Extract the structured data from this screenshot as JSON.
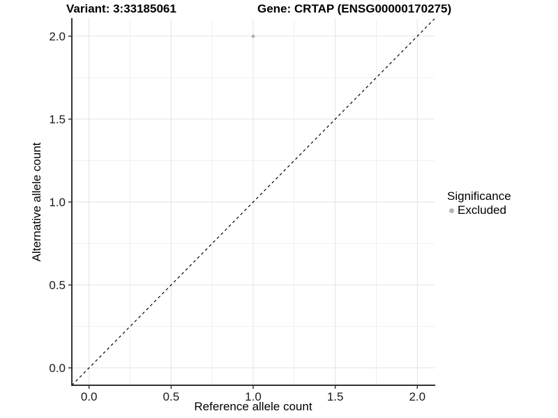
{
  "header": {
    "variant_title": "Variant: 3:33185061",
    "gene_title": "Gene: CRTAP (ENSG00000170275)"
  },
  "chart_data": {
    "type": "scatter",
    "title": "Variant: 3:33185061 / Gene: CRTAP (ENSG00000170275)",
    "xlabel": "Reference allele count",
    "ylabel": "Alternative allele count",
    "xlim": [
      -0.105,
      2.105
    ],
    "ylim": [
      -0.105,
      2.105
    ],
    "x_ticks": {
      "values": [
        0,
        0.5,
        1,
        1.5,
        2
      ],
      "labels": [
        "0.0",
        "0.5",
        "1.0",
        "1.5",
        "2.0"
      ]
    },
    "y_ticks": {
      "values": [
        0,
        0.5,
        1,
        1.5,
        2
      ],
      "labels": [
        "0.0",
        "0.5",
        "1.0",
        "1.5",
        "2.0"
      ]
    },
    "x_minor": [
      0.25,
      0.75,
      1.25,
      1.75
    ],
    "y_minor": [
      0.25,
      0.75,
      1.25,
      1.75
    ],
    "grid": true,
    "points": [
      {
        "x": 1.0,
        "y": 2.0,
        "series": "Excluded",
        "color": "#b3b3b3"
      }
    ],
    "reference_line": {
      "slope": 1,
      "intercept": 0,
      "style": "dashed",
      "color": "#000000"
    },
    "legend": {
      "title": "Significance",
      "position": "right",
      "items": [
        {
          "label": "Excluded",
          "color": "#b3b3b3"
        }
      ]
    },
    "colors": {
      "background": "#ffffff",
      "grid_major": "#e3e3e3",
      "grid_minor": "#f0f0f0",
      "axis": "#333333",
      "tick_text": "#1a1a1a",
      "point": "#b3b3b3"
    }
  }
}
